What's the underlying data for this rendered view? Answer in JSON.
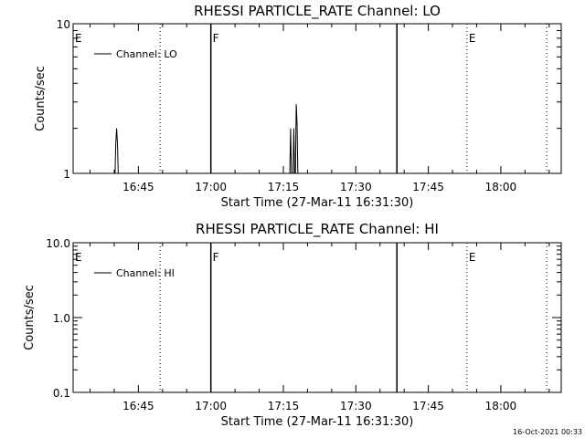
{
  "footer_timestamp": "16-Oct-2021 00:33",
  "chart_data": [
    {
      "type": "line",
      "title": "RHESSI PARTICLE_RATE Channel: LO",
      "xlabel": "Start Time (27-Mar-11 16:31:30)",
      "ylabel": "Counts/sec",
      "y_scale": "log",
      "ylim": [
        1,
        10
      ],
      "xlim": [
        "16:31:30",
        "18:12:30"
      ],
      "x_ticks": [
        "16:45",
        "17:00",
        "17:15",
        "17:30",
        "17:45",
        "18:00"
      ],
      "y_ticks": [
        "1",
        "10"
      ],
      "legend": {
        "entries": [
          "Channel: LO"
        ],
        "placement": "top-left"
      },
      "markers": [
        {
          "time": "16:31:30",
          "label": "E",
          "style": "none"
        },
        {
          "time": "16:49:30",
          "label": "",
          "style": "dotted"
        },
        {
          "time": "17:00:00",
          "label": "F",
          "style": "solid"
        },
        {
          "time": "17:38:30",
          "label": "",
          "style": "solid"
        },
        {
          "time": "17:53:00",
          "label": "E",
          "style": "dotted"
        },
        {
          "time": "18:09:30",
          "label": "",
          "style": "dotted"
        }
      ],
      "series": [
        {
          "name": "Channel: LO",
          "points": [
            [
              "16:40:10",
              1
            ],
            [
              "16:40:20",
              1.6
            ],
            [
              "16:40:30",
              2.0
            ],
            [
              "16:40:40",
              1.6
            ],
            [
              "16:40:50",
              1
            ],
            [
              "17:16:20",
              1
            ],
            [
              "17:16:30",
              2.0
            ],
            [
              "17:16:40",
              1
            ],
            [
              "17:17:00",
              1
            ],
            [
              "17:17:10",
              2.0
            ],
            [
              "17:17:20",
              1
            ],
            [
              "17:17:30",
              1
            ],
            [
              "17:17:40",
              2.9
            ],
            [
              "17:17:50",
              2.2
            ],
            [
              "17:18:00",
              1
            ]
          ]
        }
      ]
    },
    {
      "type": "line",
      "title": "RHESSI PARTICLE_RATE Channel: HI",
      "xlabel": "Start Time (27-Mar-11 16:31:30)",
      "ylabel": "Counts/sec",
      "y_scale": "log",
      "ylim": [
        0.1,
        10
      ],
      "xlim": [
        "16:31:30",
        "18:12:30"
      ],
      "x_ticks": [
        "16:45",
        "17:00",
        "17:15",
        "17:30",
        "17:45",
        "18:00"
      ],
      "y_ticks": [
        "0.1",
        "1.0",
        "10.0"
      ],
      "legend": {
        "entries": [
          "Channel: HI"
        ],
        "placement": "top-left"
      },
      "markers": [
        {
          "time": "16:31:30",
          "label": "E",
          "style": "none"
        },
        {
          "time": "16:49:30",
          "label": "",
          "style": "dotted"
        },
        {
          "time": "17:00:00",
          "label": "F",
          "style": "solid"
        },
        {
          "time": "17:38:30",
          "label": "",
          "style": "solid"
        },
        {
          "time": "17:53:00",
          "label": "E",
          "style": "dotted"
        },
        {
          "time": "18:09:30",
          "label": "",
          "style": "dotted"
        }
      ],
      "series": [
        {
          "name": "Channel: HI",
          "points": []
        }
      ]
    }
  ]
}
